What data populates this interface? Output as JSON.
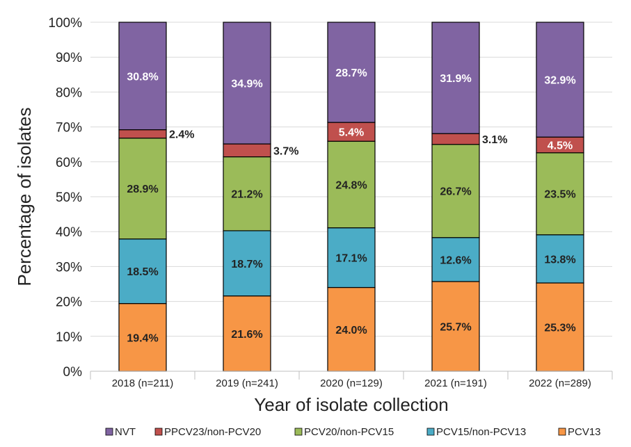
{
  "chart_data": {
    "type": "bar",
    "stacked": true,
    "xlabel": "Year of isolate collection",
    "ylabel": "Percentage of isolates",
    "ylim": [
      0,
      100
    ],
    "yticks": [
      "0%",
      "10%",
      "20%",
      "30%",
      "40%",
      "50%",
      "60%",
      "70%",
      "80%",
      "90%",
      "100%"
    ],
    "categories": [
      "2018 (n=211)",
      "2019 (n=241)",
      "2020 (n=129)",
      "2021 (n=191)",
      "2022 (n=289)"
    ],
    "grid": true,
    "legend_position": "bottom",
    "series": [
      {
        "name": "PCV13",
        "color": "#f79646",
        "label_color": "#222222",
        "values": [
          19.4,
          21.6,
          24.0,
          25.7,
          25.3
        ],
        "labels": [
          "19.4%",
          "21.6%",
          "24.0%",
          "25.7%",
          "25.3%"
        ]
      },
      {
        "name": "PCV15/non-PCV13",
        "color": "#4bacc6",
        "label_color": "#222222",
        "values": [
          18.5,
          18.7,
          17.1,
          12.6,
          13.8
        ],
        "labels": [
          "18.5%",
          "18.7%",
          "17.1%",
          "12.6%",
          "13.8%"
        ]
      },
      {
        "name": "PCV20/non-PCV15",
        "color": "#9bbb59",
        "label_color": "#222222",
        "values": [
          28.9,
          21.2,
          24.8,
          26.7,
          23.5
        ],
        "labels": [
          "28.9%",
          "21.2%",
          "24.8%",
          "26.7%",
          "23.5%"
        ]
      },
      {
        "name": "PPCV23/non-PCV20",
        "color": "#c0504d",
        "label_color": "#ffffff",
        "values": [
          2.4,
          3.7,
          5.4,
          3.1,
          4.5
        ],
        "labels": [
          "2.4%",
          "3.7%",
          "5.4%",
          "3.1%",
          "4.5%"
        ],
        "label_outside": [
          true,
          true,
          false,
          true,
          false
        ]
      },
      {
        "name": "NVT",
        "color": "#8064a2",
        "label_color": "#ffffff",
        "values": [
          30.8,
          34.9,
          28.7,
          31.9,
          32.9
        ],
        "labels": [
          "30.8%",
          "34.9%",
          "28.7%",
          "31.9%",
          "32.9%"
        ]
      }
    ],
    "legend_order": [
      "NVT",
      "PPCV23/non-PCV20",
      "PCV20/non-PCV15",
      "PCV15/non-PCV13",
      "PCV13"
    ]
  }
}
